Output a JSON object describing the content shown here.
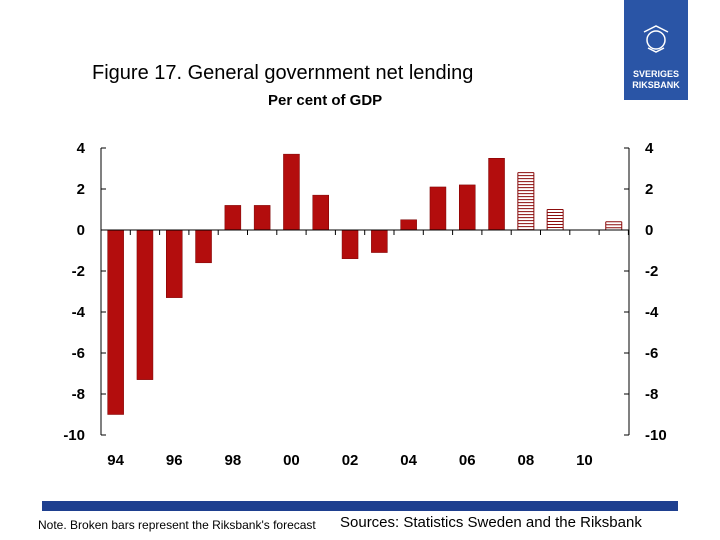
{
  "header": {
    "title": "Figure 17. General government net lending",
    "subtitle": "Per cent of GDP",
    "logo_text_line1": "SVERIGES",
    "logo_text_line2": "RIKSBANK"
  },
  "footer": {
    "note": "Note. Broken bars represent the Riksbank's forecast",
    "sources": "Sources: Statistics Sweden and the Riksbank"
  },
  "colors": {
    "bar": "#b30d0d",
    "bar_stroke": "#7a0000",
    "forecast_stroke": "#8b0d0d",
    "footer_bar": "#1e3f8f",
    "logo": "#2a55a6"
  },
  "chart_data": {
    "type": "bar",
    "x": [
      1994,
      1995,
      1996,
      1997,
      1998,
      1999,
      2000,
      2001,
      2002,
      2003,
      2004,
      2005,
      2006,
      2007,
      2008,
      2009,
      2010,
      2011
    ],
    "values": [
      -9.0,
      -7.3,
      -3.3,
      -1.6,
      1.2,
      1.2,
      3.7,
      1.7,
      -1.4,
      -1.1,
      0.5,
      2.1,
      2.2,
      3.5,
      2.8,
      1.0,
      0.0,
      0.4
    ],
    "forecast": [
      false,
      false,
      false,
      false,
      false,
      false,
      false,
      false,
      false,
      false,
      false,
      false,
      false,
      false,
      true,
      true,
      true,
      true
    ],
    "x_tick_labels": [
      {
        "year": 1994,
        "label": "94"
      },
      {
        "year": 1996,
        "label": "96"
      },
      {
        "year": 1998,
        "label": "98"
      },
      {
        "year": 2000,
        "label": "00"
      },
      {
        "year": 2002,
        "label": "02"
      },
      {
        "year": 2004,
        "label": "04"
      },
      {
        "year": 2006,
        "label": "06"
      },
      {
        "year": 2008,
        "label": "08"
      },
      {
        "year": 2010,
        "label": "10"
      }
    ],
    "ylim": [
      -10,
      4
    ],
    "yticks": [
      4,
      2,
      0,
      -2,
      -4,
      -6,
      -8,
      -10
    ],
    "ytick_labels": [
      "4",
      "2",
      "0",
      "-2",
      "-4",
      "-6",
      "-8",
      "-10"
    ],
    "grid": false,
    "legend": "none"
  }
}
